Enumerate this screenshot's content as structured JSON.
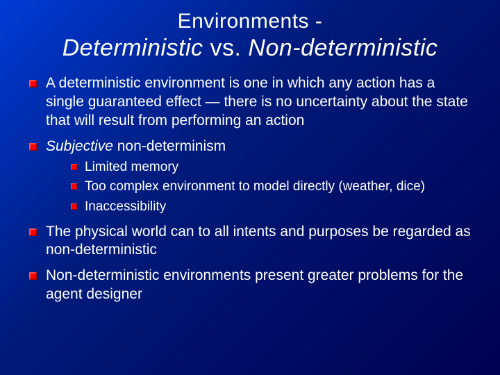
{
  "colors": {
    "bg_gradient_start": "#003bd6",
    "bg_gradient_mid": "#001a7a",
    "bg_gradient_end": "#000050",
    "text": "#ffffff",
    "bullet": "#ff0000"
  },
  "typography": {
    "title_line1_fontsize": 30,
    "title_line2_fontsize": 34,
    "bullet_fontsize": 21,
    "subbullet_fontsize": 19,
    "font_family": "Arial"
  },
  "title": {
    "line1": "Environments -",
    "line2_italic1": "Deterministic",
    "line2_plain": " vs. ",
    "line2_italic2": "Non-deterministic"
  },
  "bullets": {
    "b1": "A deterministic environment is one in which any action has a single guaranteed effect — there is no uncertainty about the state that will result from performing an action",
    "b2_italic": "Subjective",
    "b2_rest": " non-determinism",
    "b2_sub": {
      "s1": "Limited memory",
      "s2": "Too complex environment to model directly (weather, dice)",
      "s3": "Inaccessibility"
    },
    "b3": "The physical world can to all intents and purposes be regarded as non-deterministic",
    "b4": "Non-deterministic environments present greater problems for the agent designer"
  }
}
